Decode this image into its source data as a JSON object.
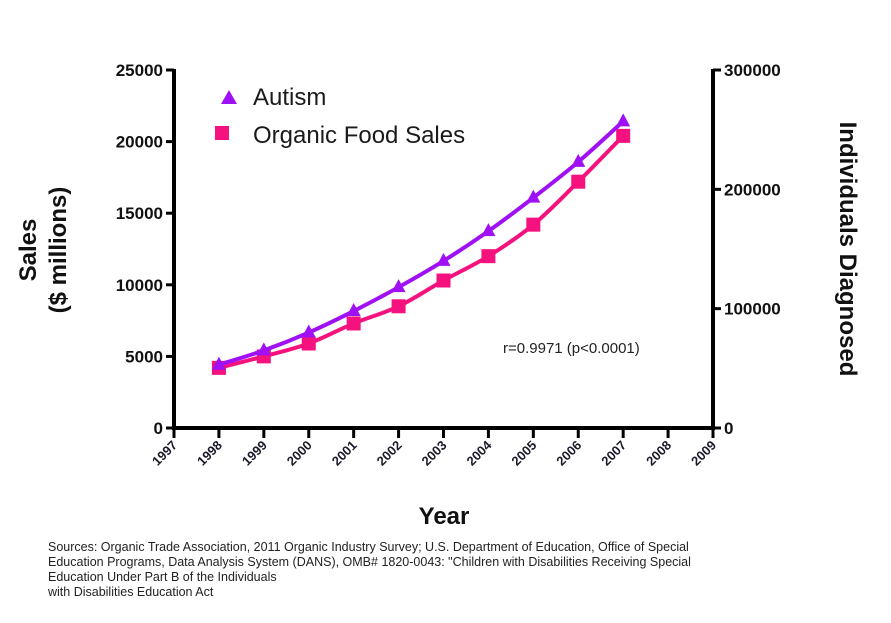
{
  "chart_data": {
    "type": "line",
    "title": "",
    "xlabel": "Year",
    "ylabel_left": [
      "Sales",
      "($ millions)"
    ],
    "ylabel_right": "Individuals Diagnosed",
    "x_range": [
      1997,
      2009
    ],
    "x_ticks": [
      "1997",
      "1998",
      "1999",
      "2000",
      "2001",
      "2002",
      "2003",
      "2004",
      "2005",
      "2006",
      "2007",
      "2008",
      "2009"
    ],
    "ylim_left": [
      0,
      25000
    ],
    "yticks_left": [
      "0",
      "5000",
      "10000",
      "15000",
      "20000",
      "25000"
    ],
    "ylim_right": [
      0,
      300000
    ],
    "yticks_right": [
      "0",
      "100000",
      "200000",
      "300000"
    ],
    "grid": false,
    "legend_position": "top-left",
    "x": [
      1998,
      1999,
      2000,
      2001,
      2002,
      2003,
      2004,
      2005,
      2006,
      2007
    ],
    "series": [
      {
        "name": "Autism",
        "axis": "right",
        "marker": "triangle",
        "color": "#a010f5",
        "values": [
          53000,
          65000,
          80000,
          98000,
          118000,
          140000,
          165000,
          193000,
          223000,
          257000
        ]
      },
      {
        "name": "Organic Food Sales",
        "axis": "left",
        "marker": "square",
        "color": "#f5127e",
        "values": [
          4200,
          5000,
          5900,
          7300,
          8500,
          10300,
          12000,
          14200,
          17200,
          20400
        ]
      }
    ],
    "annotations": [
      "r=0.9971 (p<0.0001)"
    ]
  },
  "sources": [
    "Sources: Organic Trade Association,  2011 Organic Industry Survey; U.S. Department of Education, Office of Special",
    "Education Programs, Data Analysis System (DANS), OMB# 1820-0043: \"Children with Disabilities Receiving Special",
    "Education Under Part B of the Individuals",
    "with Disabilities Education Act"
  ]
}
